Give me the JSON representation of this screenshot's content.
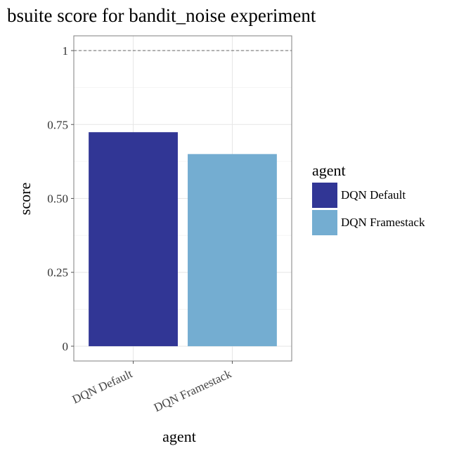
{
  "chart_data": {
    "type": "bar",
    "title": "bsuite score for bandit_noise experiment",
    "xlabel": "agent",
    "ylabel": "score",
    "categories": [
      "DQN Default",
      "DQN Framestack"
    ],
    "values": [
      0.724,
      0.65
    ],
    "colors": [
      "#313695",
      "#74add1"
    ],
    "ylim": [
      -0.05,
      1.05
    ],
    "yticks": [
      0,
      0.25,
      0.5,
      0.75,
      1
    ],
    "ytick_labels": [
      "0",
      "0.25",
      "0.50",
      "0.75",
      "1"
    ],
    "reference_line": {
      "y": 1,
      "style": "dashed",
      "color": "#666666"
    },
    "grid": true,
    "legend": {
      "title": "agent",
      "placement": "right",
      "entries": [
        "DQN Default",
        "DQN Framestack"
      ]
    }
  }
}
